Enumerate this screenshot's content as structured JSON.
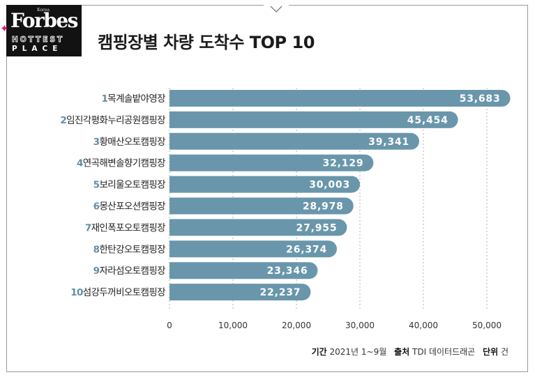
{
  "header": {
    "logo_small": "Korea",
    "logo_brand": "Forbes",
    "logo_line1": "HOTTEST",
    "logo_line2": "PLACE",
    "title": "캠핑장별 차량 도착수 TOP 10"
  },
  "footnote": {
    "period_label": "기간",
    "period_value": "2021년 1~9월",
    "source_label": "출처",
    "source_value": "TDI 데이터드래곤",
    "unit_label": "단위",
    "unit_value": "건"
  },
  "colors": {
    "bar": "#6996ab",
    "rank": "#5f8ea4",
    "value_text": "#ffffff",
    "title": "#1b1b1b"
  },
  "chart_data": {
    "type": "bar",
    "orientation": "horizontal",
    "title": "캠핑장별 차량 도착수 TOP 10",
    "ranks": [
      "1",
      "2",
      "3",
      "4",
      "5",
      "6",
      "7",
      "8",
      "9",
      "10"
    ],
    "categories": [
      "목계솔밭야영장",
      "임진각평화누리공원캠핑장",
      "황매산오토캠핑장",
      "연곡해변솔향기캠핑장",
      "보리울오토캠핑장",
      "몽산포오션캠핑장",
      "재인폭포오토캠핑장",
      "한탄강오토캠핑장",
      "자라섬오토캠핑장",
      "섬강두꺼비오토캠핑장"
    ],
    "values": [
      53683,
      45454,
      39341,
      32129,
      30003,
      28978,
      27955,
      26374,
      23346,
      22237
    ],
    "value_labels": [
      "53,683",
      "45,454",
      "39,341",
      "32,129",
      "30,003",
      "28,978",
      "27,955",
      "26,374",
      "23,346",
      "22,237"
    ],
    "xlim": [
      0,
      50000
    ],
    "xticks": [
      0,
      10000,
      20000,
      30000,
      40000,
      50000
    ],
    "xtick_labels": [
      "0",
      "10,000",
      "20,000",
      "30,000",
      "40,000",
      "50,000"
    ],
    "xlabel": "",
    "ylabel": "",
    "grid": true
  }
}
